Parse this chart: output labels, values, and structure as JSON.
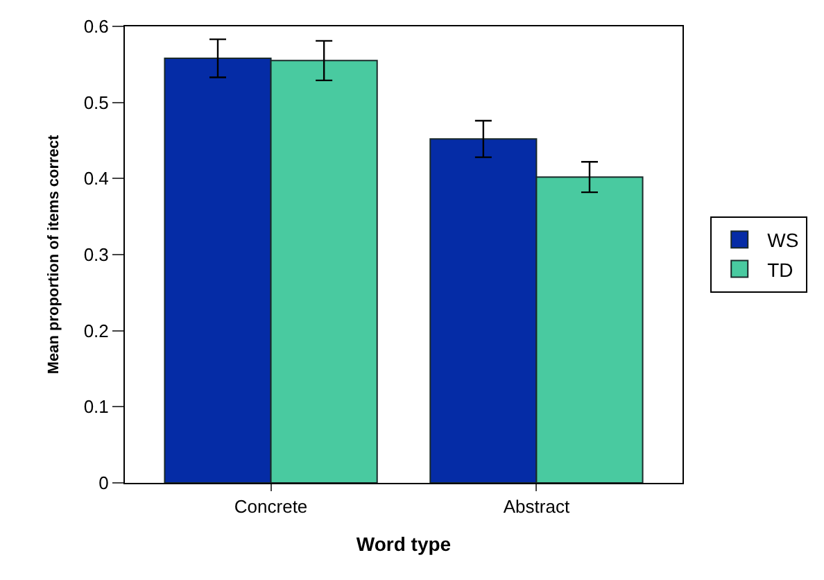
{
  "chart_data": {
    "type": "bar",
    "xlabel": "Word type",
    "ylabel": "Mean proportion of items correct",
    "categories": [
      "Concrete",
      "Abstract"
    ],
    "series": [
      {
        "name": "WS",
        "color": "#052ca6",
        "values": [
          0.558,
          0.452
        ],
        "errors": [
          0.025,
          0.024
        ]
      },
      {
        "name": "TD",
        "color": "#49caa0",
        "values": [
          0.555,
          0.402
        ],
        "errors": [
          0.026,
          0.02
        ]
      }
    ],
    "ylim": [
      0,
      0.6
    ],
    "yticks": [
      {
        "value": 0,
        "label": "0"
      },
      0.1,
      0.2,
      0.3,
      0.4,
      0.5,
      0.6
    ],
    "grid": false,
    "legend": "right"
  }
}
